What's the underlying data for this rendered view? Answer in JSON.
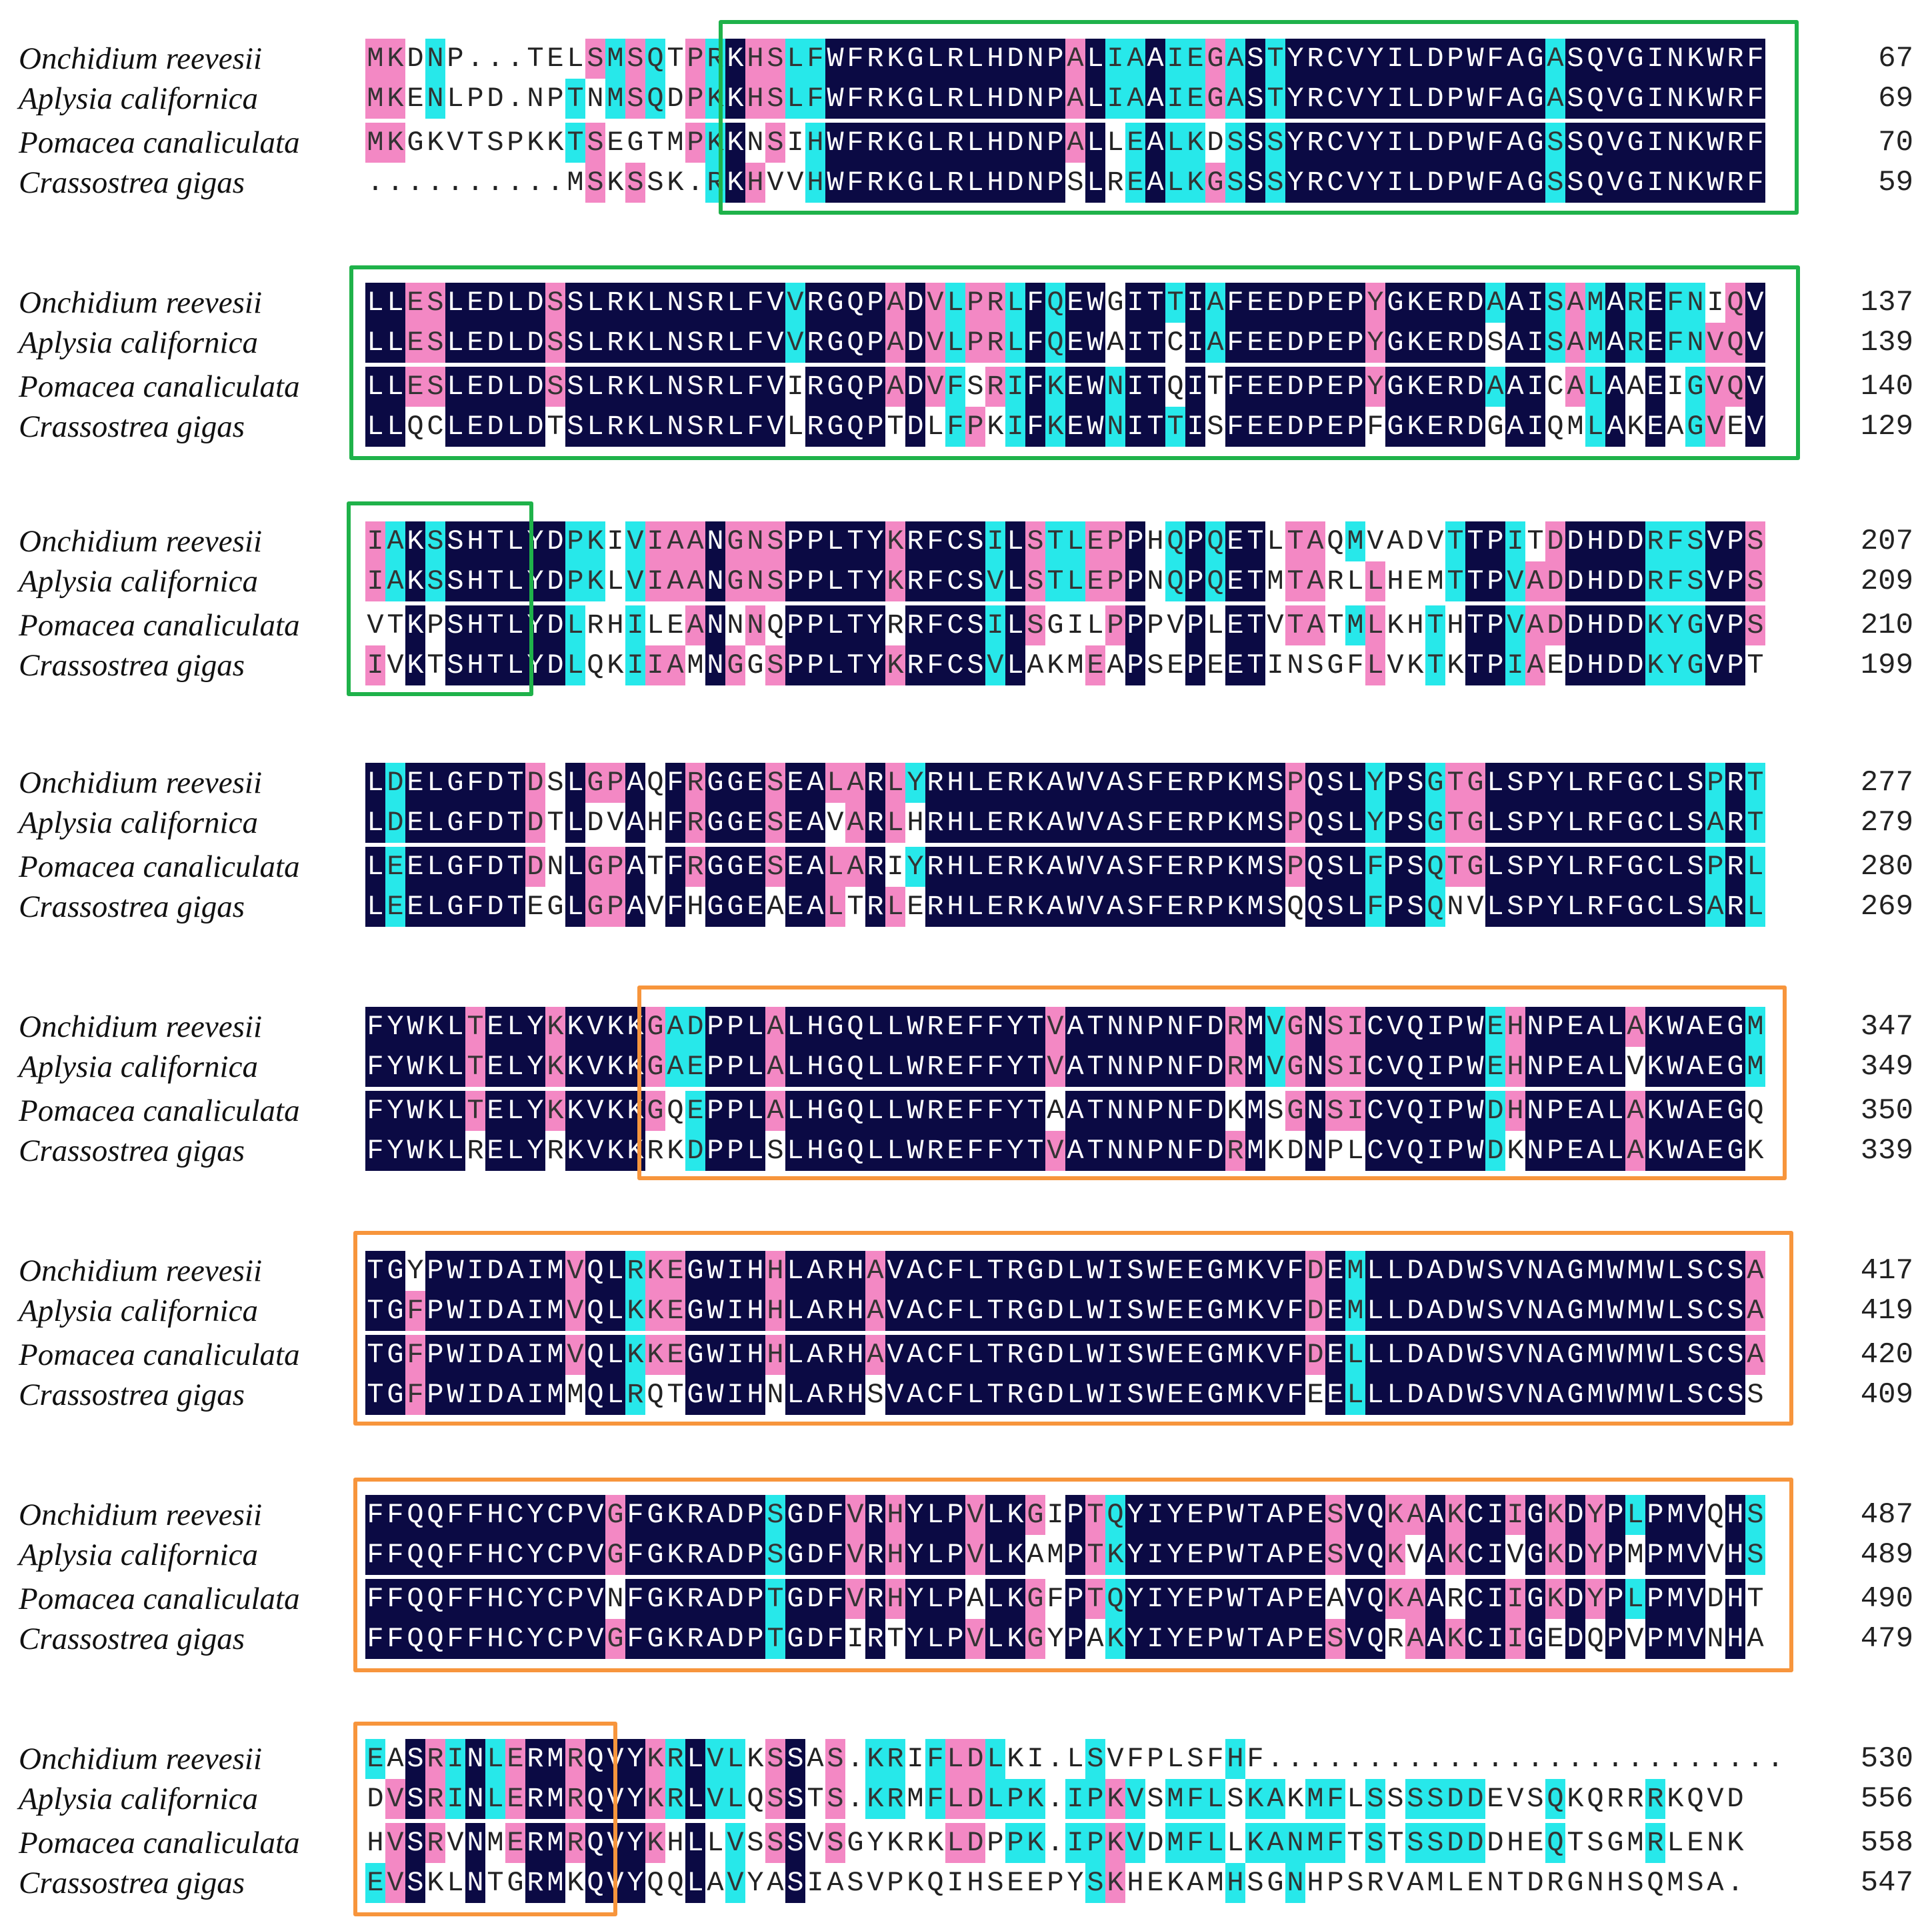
{
  "figure": {
    "type": "multiple-sequence-alignment",
    "colors": {
      "identical": "#0b0a44",
      "high_similarity": "#f388c4",
      "low_similarity": "#27e8ea",
      "green_box": "#1fb24a",
      "orange_box": "#f7953c"
    }
  },
  "blocks": [
    {
      "rows": [
        {
          "species": "Onchidium reevesii",
          "seq": "MKDNP...TELSMSQTPRKHSLFWFRKGLRLHDNPALIAAIEGASTYRCVYILDPWFAGASQVGINKWRF",
          "num": "67"
        },
        {
          "species": "Aplysia californica",
          "seq": "MKENLPD.NPTNMSQDPKKHSLFWFRKGLRLHDNPALIAAIEGASTYRCVYILDPWFAGASQVGINKWRF",
          "num": "69"
        },
        {
          "species": "Pomacea canaliculata",
          "seq": "MKGKVTSPKKTSEGTMPKKNSIHWFRKGLRLHDNPALLEALKDSSSYRCVYILDPWFAGSSQVGINKWRF",
          "num": "70"
        },
        {
          "species": "Crassostrea gigas",
          "seq": "..........MSKSSK.RKHVVHWFRKGLRLHDNPSLREALKGSSSYRCVYILDPWFAGSSQVGINKWRF",
          "num": "59"
        }
      ]
    },
    {
      "rows": [
        {
          "species": "Onchidium reevesii",
          "seq": "LLESLEDLDSSLRKLNSRLFVVRGQPADVLPRLFQEWGITTIAFEEDPEPYGKERDAAISAMAREFNIQV",
          "num": "137"
        },
        {
          "species": "Aplysia californica",
          "seq": "LLESLEDLDSSLRKLNSRLFVVRGQPADVLPRLFQEWAITCIAFEEDPEPYGKERDSAISAMAREFNVQV",
          "num": "139"
        },
        {
          "species": "Pomacea canaliculata",
          "seq": "LLESLEDLDSSLRKLNSRLFVIRGQPADVFSRIFKEWNITQITFEEDPEPYGKERDAAICALAAEIGVQV",
          "num": "140"
        },
        {
          "species": "Crassostrea gigas",
          "seq": "LLQCLEDLDTSLRKLNSRLFVLRGQPTDLFPKIFKEWNITTISFEEDPEPFGKERDGAIQMLAKEAGVEV",
          "num": "129"
        }
      ]
    },
    {
      "rows": [
        {
          "species": "Onchidium reevesii",
          "seq": "IAKSSHTLYDPKIVIAANGNSPPLTYKRFCSILSTLEPPHQPQETLTAQMVADVTTPITDDHDDRFSVPS",
          "num": "207"
        },
        {
          "species": "Aplysia californica",
          "seq": "IAKSSHTLYDPKLVIAANGNSPPLTYKRFCSVLSTLEPPNQPQETMTARLLHEMTTPVADDHDDRFSVPS",
          "num": "209"
        },
        {
          "species": "Pomacea canaliculata",
          "seq": "VTKPSHTLYDLRHILEANNNQPPLTYRRFCSILSGILPPPVPLETVTATMLKHTHTPVADDHDDKYGVPS",
          "num": "210"
        },
        {
          "species": "Crassostrea gigas",
          "seq": "IVKTSHTLYDLQKIIAMNGGSPPLTYKRFCSVLAKMEAPSEPEETINSGFLVKTKTPIAEDHDDKYGVPT",
          "num": "199"
        }
      ]
    },
    {
      "rows": [
        {
          "species": "Onchidium reevesii",
          "seq": "LDELGFDTDSLGPAQFRGGESEALARLYRHLERKAWVASFERPKMSPQSLYPSGTGLSPYLRFGCLSPRT",
          "num": "277"
        },
        {
          "species": "Aplysia californica",
          "seq": "LDELGFDTDTLDVAHFRGGESEAVARLHRHLERKAWVASFERPKMSPQSLYPSGTGLSPYLRFGCLSART",
          "num": "279"
        },
        {
          "species": "Pomacea canaliculata",
          "seq": "LEELGFDTDNLGPATFRGGESEALARIYRHLERKAWVASFERPKMSPQSLFPSQTGLSPYLRFGCLSPRL",
          "num": "280"
        },
        {
          "species": "Crassostrea gigas",
          "seq": "LEELGFDTEGLGPAVFHGGEAEALTRLERHLERKAWVASFERPKMSQQSLFPSQNVLSPYLRFGCLSARL",
          "num": "269"
        }
      ]
    },
    {
      "rows": [
        {
          "species": "Onchidium reevesii",
          "seq": "FYWKLTELYKKVKKGADPPLALHGQLLWREFFYTVATNNPNFDRMVGNSICVQIPWEHNPEALAKWAEGM",
          "num": "347"
        },
        {
          "species": "Aplysia californica",
          "seq": "FYWKLTELYKKVKKGAEPPLALHGQLLWREFFYTVATNNPNFDRMVGNSICVQIPWEHNPEALVKWAEGM",
          "num": "349"
        },
        {
          "species": "Pomacea canaliculata",
          "seq": "FYWKLTELYKKVKKGQEPPLALHGQLLWREFFYTAATNNPNFDKMSGNSICVQIPWDHNPEALAKWAEGQ",
          "num": "350"
        },
        {
          "species": "Crassostrea gigas",
          "seq": "FYWKLRELYRKVKKRKDPPLSLHGQLLWREFFYTVATNNPNFDRMKDNPLCVQIPWDKNPEALAKWAEGK",
          "num": "339"
        }
      ]
    },
    {
      "rows": [
        {
          "species": "Onchidium reevesii",
          "seq": "TGYPWIDAIMVQLRKEGWIHHLARHAVACFLTRGDLWISWEEGMKVFDEMLLDADWSVNAGMWMWLSCSA",
          "num": "417"
        },
        {
          "species": "Aplysia californica",
          "seq": "TGFPWIDAIMVQLKKEGWIHHLARHAVACFLTRGDLWISWEEGMKVFDEMLLDADWSVNAGMWMWLSCSA",
          "num": "419"
        },
        {
          "species": "Pomacea canaliculata",
          "seq": "TGFPWIDAIMVQLKKEGWIHHLARHAVACFLTRGDLWISWEEGMKVFDELLLDADWSVNAGMWMWLSCSA",
          "num": "420"
        },
        {
          "species": "Crassostrea gigas",
          "seq": "TGFPWIDAIMMQLRQTGWIHNLARHSVACFLTRGDLWISWEEGMKVFEELLLDADWSVNAGMWMWLSCSS",
          "num": "409"
        }
      ]
    },
    {
      "rows": [
        {
          "species": "Onchidium reevesii",
          "seq": "FFQQFFHCYCPVGFGKRADPSGDFVRHYLPVLKGIPTQYIYEPWTAPESVQKAAKCIIGKDYPLPMVQHS",
          "num": "487"
        },
        {
          "species": "Aplysia californica",
          "seq": "FFQQFFHCYCPVGFGKRADPSGDFVRHYLPVLKAMPTKYIYEPWTAPESVQKVAKCIVGKDYPMPMVVHS",
          "num": "489"
        },
        {
          "species": "Pomacea canaliculata",
          "seq": "FFQQFFHCYCPVNFGKRADPTGDFVRHYLPALKGFPTQYIYEPWTAPEAVQKAARCIIGKDYPLPMVDHT",
          "num": "490"
        },
        {
          "species": "Crassostrea gigas",
          "seq": "FFQQFFHCYCPVGFGKRADPTGDFIRTYLPVLKGYPAKYIYEPWTAPESVQRAAKCIIGEDQPVPMVNHA",
          "num": "479"
        }
      ]
    },
    {
      "rows": [
        {
          "species": "Onchidium reevesii",
          "seq": "EASRINLERMRQVYKRLVLKSSAS.KRIFLDLKI.LSVFPLSFHF..........................",
          "num": "530"
        },
        {
          "species": "Aplysia californica",
          "seq": "DVSRINLERMRQVYKRLVLQSSTS.KRMFLDLPK.IPKVSMFLSKAKMFLSSSSDDEVSQKQRRRKQVD",
          "num": "556"
        },
        {
          "species": "Pomacea canaliculata",
          "seq": "HVSRVNMERMRQVYKHLLVSSSVSGYKRKLDPPK.IPKVDMFLLKANMFTSTSSDDDHEQTSGMRLENK",
          "num": "558"
        },
        {
          "species": "Crassostrea gigas",
          "seq": "EVSKLNTGRMKQVYQQLAVYASIASVPKQIHSEEPYSKHEKAMHSGNHPSRVAMLENTDRGNHSQMSA.",
          "num": "547"
        }
      ]
    }
  ]
}
